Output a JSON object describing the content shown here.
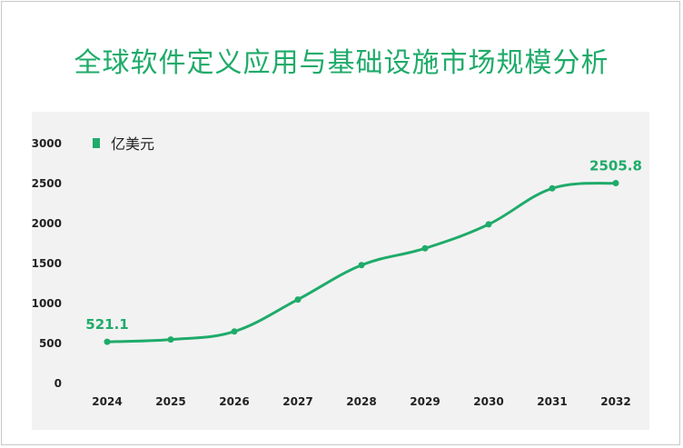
{
  "title": "全球软件定义应用与基础设施市场规模分析",
  "colors": {
    "accent": "#1fab6a",
    "plot_bg": "#f2f2f2"
  },
  "chart_data": {
    "type": "line",
    "title": "全球软件定义应用与基础设施市场规模分析",
    "categories": [
      "2024",
      "2025",
      "2026",
      "2027",
      "2028",
      "2029",
      "2030",
      "2031",
      "2032"
    ],
    "series": [
      {
        "name": "亿美元",
        "values": [
          521.1,
          550,
          650,
          1050,
          1480,
          1690,
          1990,
          2440,
          2505.8
        ]
      }
    ],
    "yticks": [
      0,
      500,
      1000,
      1500,
      2000,
      2500,
      3000
    ],
    "ylim": [
      0,
      3000
    ],
    "data_labels": [
      {
        "index": 0,
        "text": "521.1"
      },
      {
        "index": 8,
        "text": "2505.8"
      }
    ],
    "legend": "top-left",
    "grid": false,
    "smooth": true
  }
}
